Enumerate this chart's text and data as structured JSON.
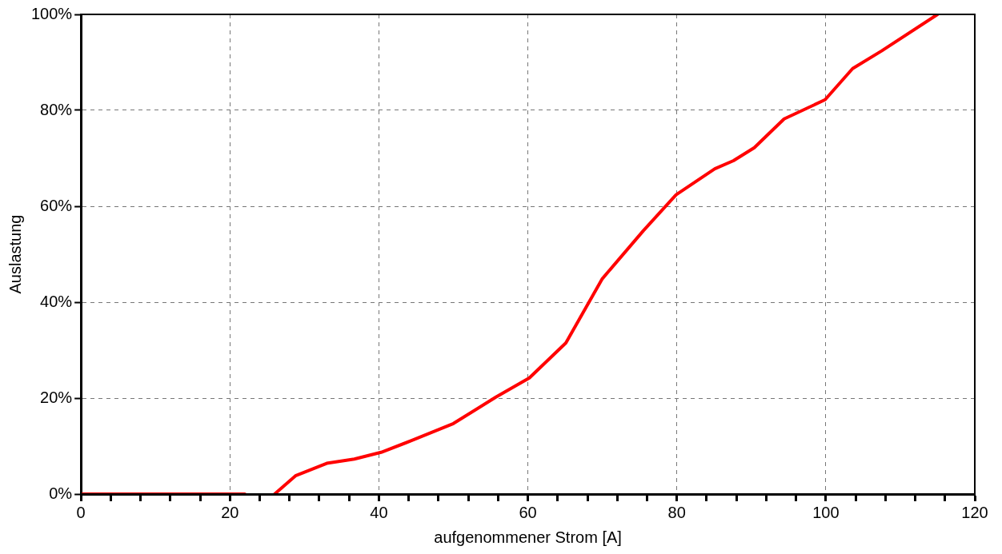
{
  "chart_data": {
    "type": "line",
    "xlabel": "aufgenommener Strom [A]",
    "ylabel": "Auslastung",
    "xlim": [
      0,
      120
    ],
    "ylim": [
      0,
      100
    ],
    "xticks": [
      0,
      {
        "value": 4,
        "label": null
      },
      {
        "value": 8,
        "label": null
      },
      {
        "value": 12,
        "label": null
      },
      {
        "value": 16,
        "label": null
      },
      20,
      {
        "value": 24,
        "label": null
      },
      {
        "value": 28,
        "label": null
      },
      {
        "value": 32,
        "label": null
      },
      {
        "value": 36,
        "label": null
      },
      40,
      {
        "value": 44,
        "label": null
      },
      {
        "value": 48,
        "label": null
      },
      {
        "value": 52,
        "label": null
      },
      {
        "value": 56,
        "label": null
      },
      60,
      {
        "value": 64,
        "label": null
      },
      {
        "value": 68,
        "label": null
      },
      {
        "value": 72,
        "label": null
      },
      {
        "value": 76,
        "label": null
      },
      80,
      {
        "value": 84,
        "label": null
      },
      {
        "value": 88,
        "label": null
      },
      {
        "value": 92,
        "label": null
      },
      {
        "value": 96,
        "label": null
      },
      100,
      {
        "value": 104,
        "label": null
      },
      {
        "value": 108,
        "label": null
      },
      {
        "value": 112,
        "label": null
      },
      {
        "value": 116,
        "label": null
      },
      120
    ],
    "yticks": [
      {
        "value": 0,
        "label": "0%"
      },
      {
        "value": 20,
        "label": "20%"
      },
      {
        "value": 40,
        "label": "40%"
      },
      {
        "value": 60,
        "label": "60%"
      },
      {
        "value": 80,
        "label": "80%"
      },
      {
        "value": 100,
        "label": "100%"
      }
    ],
    "grid": true,
    "legend": false,
    "marker": "none",
    "line_style": "solid",
    "series": [
      {
        "color": "#ff0000",
        "x": [
          0,
          22,
          23,
          26,
          28.8,
          33,
          36.7,
          40.3,
          44.3,
          50,
          55.7,
          60.2,
          65.1,
          70,
          75.5,
          79.9,
          85.1,
          87.6,
          90.4,
          94.4,
          99.9,
          103.6,
          107.5,
          115
        ],
        "values": [
          0,
          0,
          null,
          0,
          3.8,
          6.4,
          7.3,
          8.7,
          11.1,
          14.7,
          20.2,
          24.2,
          31.5,
          44.9,
          54.9,
          62.4,
          67.8,
          69.5,
          72.2,
          78.2,
          82.2,
          88.7,
          92.4,
          100
        ]
      }
    ]
  }
}
